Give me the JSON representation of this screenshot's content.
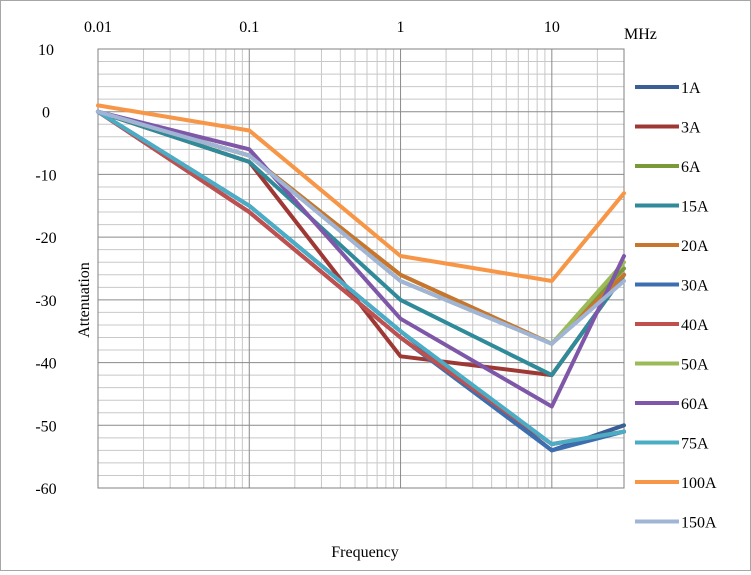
{
  "chart_data": {
    "type": "line",
    "xscale": "log",
    "xlim": [
      0.01,
      30
    ],
    "ylim": [
      -60,
      10
    ],
    "x_ticks": [
      {
        "value": 0.01,
        "label": "0.01"
      },
      {
        "value": 0.1,
        "label": "0.1"
      },
      {
        "value": 1,
        "label": "1"
      },
      {
        "value": 10,
        "label": "10"
      }
    ],
    "y_ticks": [
      {
        "value": 10,
        "label": "10"
      },
      {
        "value": 0,
        "label": "0"
      },
      {
        "value": -10,
        "label": "-10"
      },
      {
        "value": -20,
        "label": "-20"
      },
      {
        "value": -30,
        "label": "-30"
      },
      {
        "value": -40,
        "label": "-40"
      },
      {
        "value": -50,
        "label": "-50"
      },
      {
        "value": -60,
        "label": "-60"
      }
    ],
    "x_unit": "MHz",
    "xlabel": "Frequency",
    "ylabel": "Attenuation",
    "grid": true,
    "legend_position": "right",
    "x": [
      0.01,
      0.1,
      1,
      10,
      30
    ],
    "series": [
      {
        "name": "1A",
        "color": "#3a5f94",
        "values": [
          0,
          -15,
          -35,
          -54,
          -50
        ]
      },
      {
        "name": "3A",
        "color": "#9e3834",
        "values": [
          0,
          -8,
          -39,
          -42,
          -26
        ]
      },
      {
        "name": "6A",
        "color": "#7a9a3a",
        "values": [
          0,
          -7,
          -26,
          -37,
          -25
        ]
      },
      {
        "name": "15A",
        "color": "#2f8a99",
        "values": [
          0,
          -8,
          -30,
          -42,
          -26
        ]
      },
      {
        "name": "20A",
        "color": "#c8762e",
        "values": [
          0,
          -7,
          -26,
          -37,
          -26
        ]
      },
      {
        "name": "30A",
        "color": "#3d6fb0",
        "values": [
          0,
          -16,
          -36,
          -54,
          -51
        ]
      },
      {
        "name": "40A",
        "color": "#c0504d",
        "values": [
          0,
          -16,
          -36,
          -53,
          -51
        ]
      },
      {
        "name": "50A",
        "color": "#9bbb59",
        "values": [
          0,
          -7,
          -27,
          -37,
          -24
        ]
      },
      {
        "name": "60A",
        "color": "#7e57a8",
        "values": [
          0,
          -6,
          -33,
          -47,
          -23
        ]
      },
      {
        "name": "75A",
        "color": "#4bacc6",
        "values": [
          0,
          -15,
          -35,
          -53,
          -51
        ]
      },
      {
        "name": "100A",
        "color": "#f79646",
        "values": [
          1,
          -3,
          -23,
          -27,
          -13
        ]
      },
      {
        "name": "150A",
        "color": "#a0b4d6",
        "values": [
          0,
          -7,
          -27,
          -37,
          -27
        ]
      }
    ]
  }
}
